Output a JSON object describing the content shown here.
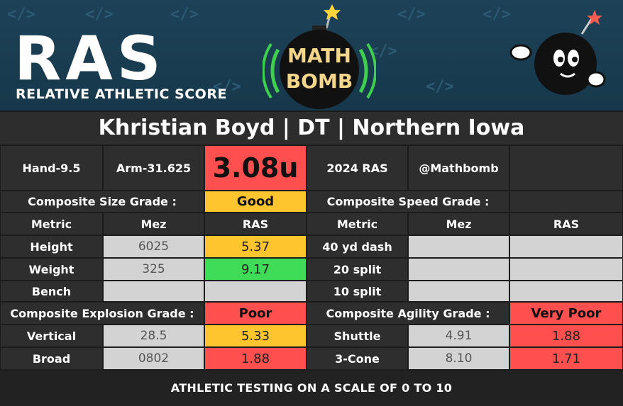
{
  "header": {
    "logo": "RAS",
    "logo_subtitle": "RELATIVE ATHLETIC SCORE",
    "badge_top": "MATH",
    "badge_bottom": "BOMB"
  },
  "title": "Khristian Boyd | DT | Northern Iowa",
  "info": {
    "hand": "Hand-9.5",
    "arm": "Arm-31.625",
    "score": "3.08u",
    "year": "2024 RAS",
    "handle": "@Mathbomb"
  },
  "columns": [
    "Metric",
    "Mez",
    "RAS"
  ],
  "sections": [
    {
      "label": "Composite Size Grade :",
      "grade": "Good",
      "rows": [
        [
          "Height",
          "6025",
          "5.37"
        ],
        [
          "Weight",
          "325",
          "9.17"
        ],
        [
          "Bench",
          null,
          null
        ]
      ]
    },
    {
      "label": "Composite Speed Grade :",
      "grade": null,
      "rows": [
        [
          "40 yd dash",
          null,
          null
        ],
        [
          "20 split",
          null,
          null
        ],
        [
          "10 split",
          null,
          null
        ]
      ]
    },
    {
      "label": "Composite Explosion Grade :",
      "grade": "Poor",
      "rows": [
        [
          "Vertical",
          "28.5",
          "5.33"
        ],
        [
          "Broad",
          "0802",
          "1.88"
        ]
      ]
    },
    {
      "label": "Composite Agility Grade :",
      "grade": "Very Poor",
      "rows": [
        [
          "Shuttle",
          "4.91",
          "1.88"
        ],
        [
          "3-Cone",
          "8.10",
          "1.71"
        ]
      ]
    }
  ],
  "footer": "ATHLETIC TESTING ON A SCALE OF 0 TO 10"
}
